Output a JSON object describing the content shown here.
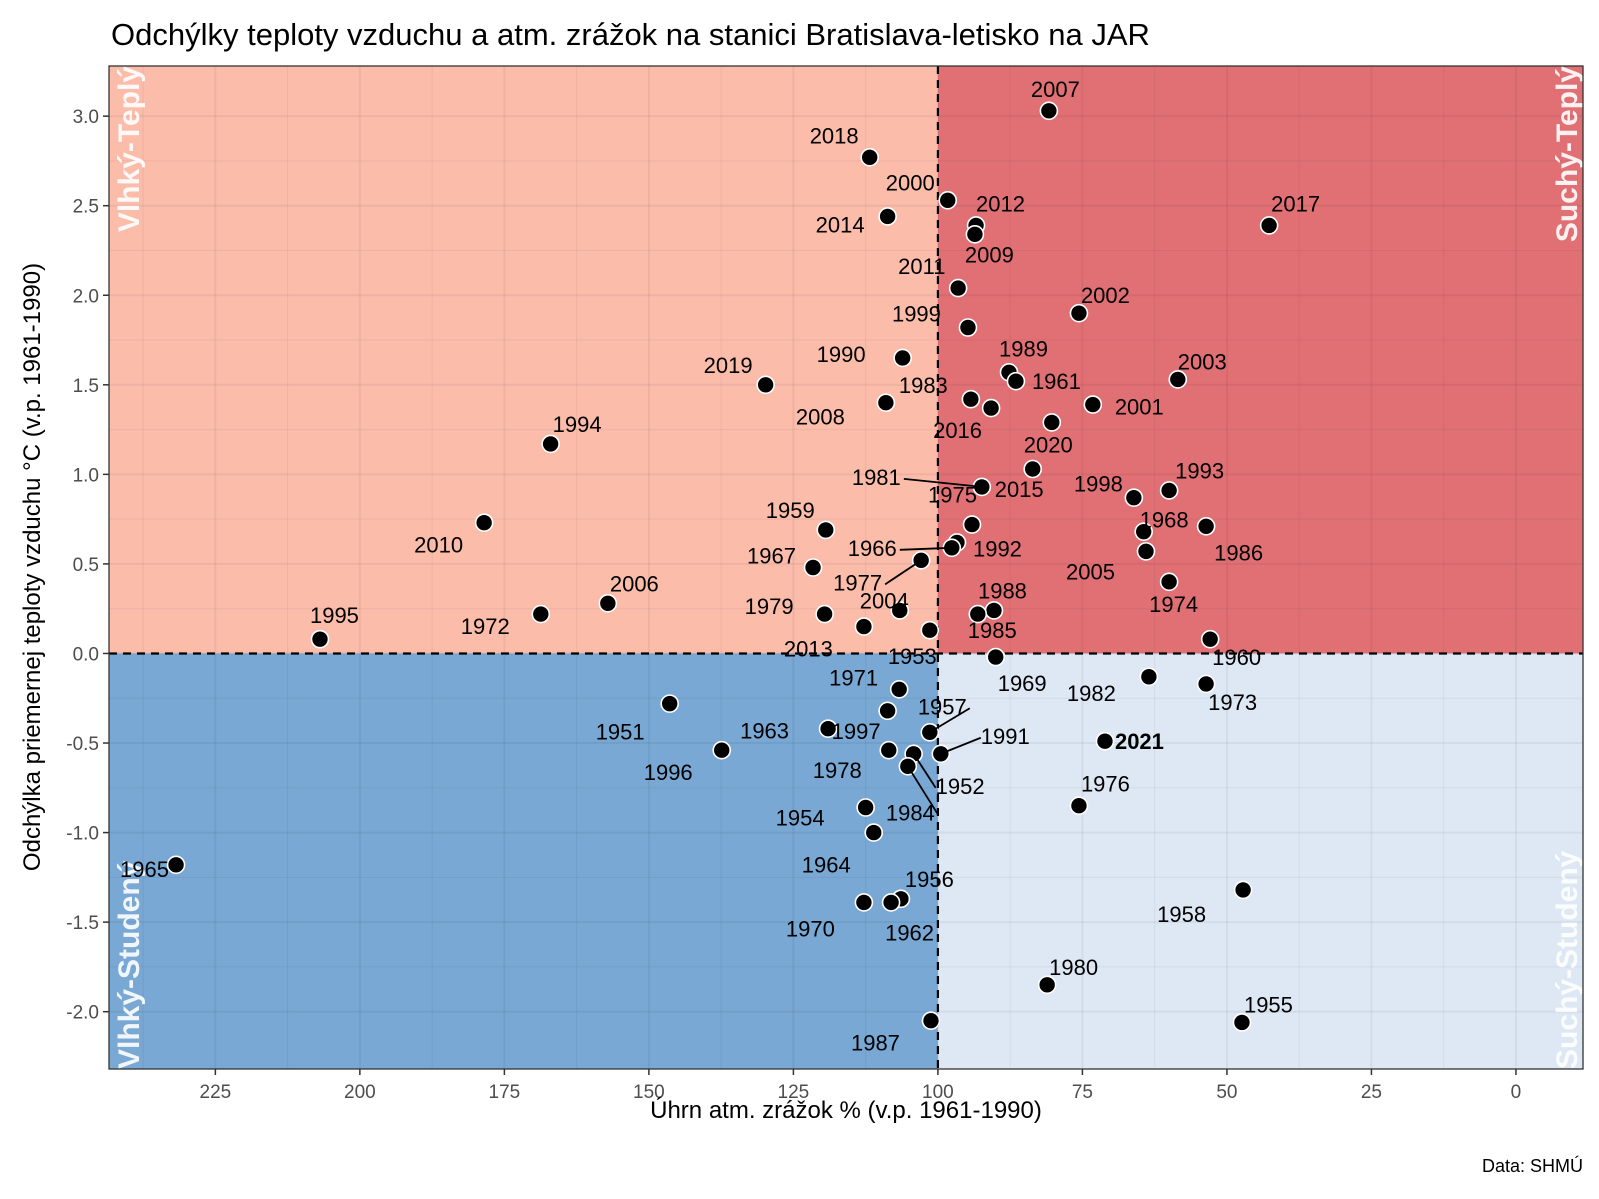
{
  "chart_data": {
    "type": "scatter",
    "title": "Odchýlky teploty vzduchu a atm. zrážok na stanici Bratislava-letisko na JAR",
    "xlabel": "Úhrn atm. zrážok % (v.p. 1961-1990)",
    "ylabel": "Odchýlka priemernej teploty vzduchu °C (v.p. 1961-1990)",
    "caption": "Data: SHMÚ",
    "x_reversed": true,
    "xlim": [
      243.4,
      -11.6
    ],
    "ylim": [
      -2.32,
      3.28
    ],
    "x_ticks": [
      225,
      200,
      175,
      150,
      125,
      100,
      75,
      50,
      25,
      0
    ],
    "y_ticks": [
      -2.0,
      -1.5,
      -1.0,
      -0.5,
      0.0,
      0.5,
      1.0,
      1.5,
      2.0,
      2.5,
      3.0
    ],
    "y_tick_labels": [
      "-2.0",
      "-1.5",
      "-1.0",
      "-0.5",
      "0.0",
      "0.5",
      "1.0",
      "1.5",
      "2.0",
      "2.5",
      "3.0"
    ],
    "grid": true,
    "reference_lines": {
      "x": 100,
      "y": 0,
      "style": "dashed"
    },
    "quadrants": [
      {
        "name": "Vlhký-Teplý",
        "x_range": "above 100",
        "y_range": "above 0",
        "color": "#fbbcaa"
      },
      {
        "name": "Suchý-Teplý",
        "x_range": "below 100",
        "y_range": "above 0",
        "color": "#e07074"
      },
      {
        "name": "Vlhký-Studený",
        "x_range": "above 100",
        "y_range": "below 0",
        "color": "#78a8d3"
      },
      {
        "name": "Suchý-Studený",
        "x_range": "below 100",
        "y_range": "below 0",
        "color": "#dde8f4"
      }
    ],
    "points": [
      {
        "year": "2007",
        "x": 80.8,
        "y": 3.03
      },
      {
        "year": "2018",
        "x": 111.8,
        "y": 2.77
      },
      {
        "year": "2000",
        "x": 98.3,
        "y": 2.53
      },
      {
        "year": "2014",
        "x": 108.7,
        "y": 2.44
      },
      {
        "year": "2012",
        "x": 93.4,
        "y": 2.39
      },
      {
        "year": "2009",
        "x": 93.6,
        "y": 2.34
      },
      {
        "year": "2017",
        "x": 42.7,
        "y": 2.39
      },
      {
        "year": "2011",
        "x": 96.5,
        "y": 2.04
      },
      {
        "year": "2002",
        "x": 75.6,
        "y": 1.9
      },
      {
        "year": "1999",
        "x": 94.8,
        "y": 1.82
      },
      {
        "year": "1990",
        "x": 106.1,
        "y": 1.65
      },
      {
        "year": "1989",
        "x": 87.7,
        "y": 1.57
      },
      {
        "year": "1961",
        "x": 86.5,
        "y": 1.52
      },
      {
        "year": "2003",
        "x": 58.5,
        "y": 1.53
      },
      {
        "year": "2019",
        "x": 129.8,
        "y": 1.5
      },
      {
        "year": "1983",
        "x": 94.3,
        "y": 1.42
      },
      {
        "year": "2008",
        "x": 109.0,
        "y": 1.4
      },
      {
        "year": "2001",
        "x": 73.2,
        "y": 1.39
      },
      {
        "year": "2016",
        "x": 90.8,
        "y": 1.37
      },
      {
        "year": "2020",
        "x": 80.3,
        "y": 1.29
      },
      {
        "year": "1994",
        "x": 167.0,
        "y": 1.17
      },
      {
        "year": "2015",
        "x": 83.6,
        "y": 1.03
      },
      {
        "year": "1981",
        "x": 92.4,
        "y": 0.93
      },
      {
        "year": "1993",
        "x": 60.0,
        "y": 0.91
      },
      {
        "year": "1998",
        "x": 66.1,
        "y": 0.87
      },
      {
        "year": "2010",
        "x": 178.5,
        "y": 0.73
      },
      {
        "year": "1975",
        "x": 94.1,
        "y": 0.72
      },
      {
        "year": "1986",
        "x": 53.6,
        "y": 0.71
      },
      {
        "year": "1959",
        "x": 119.4,
        "y": 0.69
      },
      {
        "year": "1968",
        "x": 64.4,
        "y": 0.68
      },
      {
        "year": "1992",
        "x": 96.7,
        "y": 0.62
      },
      {
        "year": "1966",
        "x": 97.6,
        "y": 0.59
      },
      {
        "year": "2005",
        "x": 64.0,
        "y": 0.57
      },
      {
        "year": "1977",
        "x": 102.9,
        "y": 0.52
      },
      {
        "year": "1967",
        "x": 121.6,
        "y": 0.48
      },
      {
        "year": "1974",
        "x": 60.0,
        "y": 0.4
      },
      {
        "year": "2006",
        "x": 157.1,
        "y": 0.28
      },
      {
        "year": "2004",
        "x": 106.6,
        "y": 0.24
      },
      {
        "year": "1988",
        "x": 90.3,
        "y": 0.24
      },
      {
        "year": "1985",
        "x": 93.1,
        "y": 0.22
      },
      {
        "year": "1979",
        "x": 119.6,
        "y": 0.22
      },
      {
        "year": "1972",
        "x": 168.7,
        "y": 0.22
      },
      {
        "year": "2013",
        "x": 112.8,
        "y": 0.15
      },
      {
        "year": "1953",
        "x": 101.4,
        "y": 0.13
      },
      {
        "year": "1995",
        "x": 206.9,
        "y": 0.08
      },
      {
        "year": "1960",
        "x": 52.9,
        "y": 0.08
      },
      {
        "year": "1969",
        "x": 90.0,
        "y": -0.02
      },
      {
        "year": "1982",
        "x": 63.5,
        "y": -0.13
      },
      {
        "year": "1973",
        "x": 53.6,
        "y": -0.17
      },
      {
        "year": "1971",
        "x": 106.7,
        "y": -0.2
      },
      {
        "year": "1951",
        "x": 146.4,
        "y": -0.28
      },
      {
        "year": "1997",
        "x": 108.7,
        "y": -0.32
      },
      {
        "year": "1963",
        "x": 119.0,
        "y": -0.42
      },
      {
        "year": "1957",
        "x": 101.4,
        "y": -0.44
      },
      {
        "year": "2021",
        "x": 71.1,
        "y": -0.49,
        "highlight": true
      },
      {
        "year": "1996",
        "x": 137.4,
        "y": -0.54
      },
      {
        "year": "1978",
        "x": 108.5,
        "y": -0.54
      },
      {
        "year": "1952",
        "x": 104.2,
        "y": -0.56
      },
      {
        "year": "1991",
        "x": 99.5,
        "y": -0.56
      },
      {
        "year": "1984",
        "x": 105.2,
        "y": -0.63
      },
      {
        "year": "1976",
        "x": 75.6,
        "y": -0.85
      },
      {
        "year": "1954",
        "x": 112.5,
        "y": -0.86
      },
      {
        "year": "1964",
        "x": 111.1,
        "y": -1.0
      },
      {
        "year": "1965",
        "x": 231.8,
        "y": -1.18
      },
      {
        "year": "1958",
        "x": 47.2,
        "y": -1.32
      },
      {
        "year": "1956",
        "x": 106.4,
        "y": -1.37
      },
      {
        "year": "1970",
        "x": 112.8,
        "y": -1.39
      },
      {
        "year": "1962",
        "x": 108.1,
        "y": -1.39
      },
      {
        "year": "1980",
        "x": 81.1,
        "y": -1.85
      },
      {
        "year": "1987",
        "x": 101.2,
        "y": -2.05
      },
      {
        "year": "1955",
        "x": 47.4,
        "y": -2.06
      }
    ]
  }
}
